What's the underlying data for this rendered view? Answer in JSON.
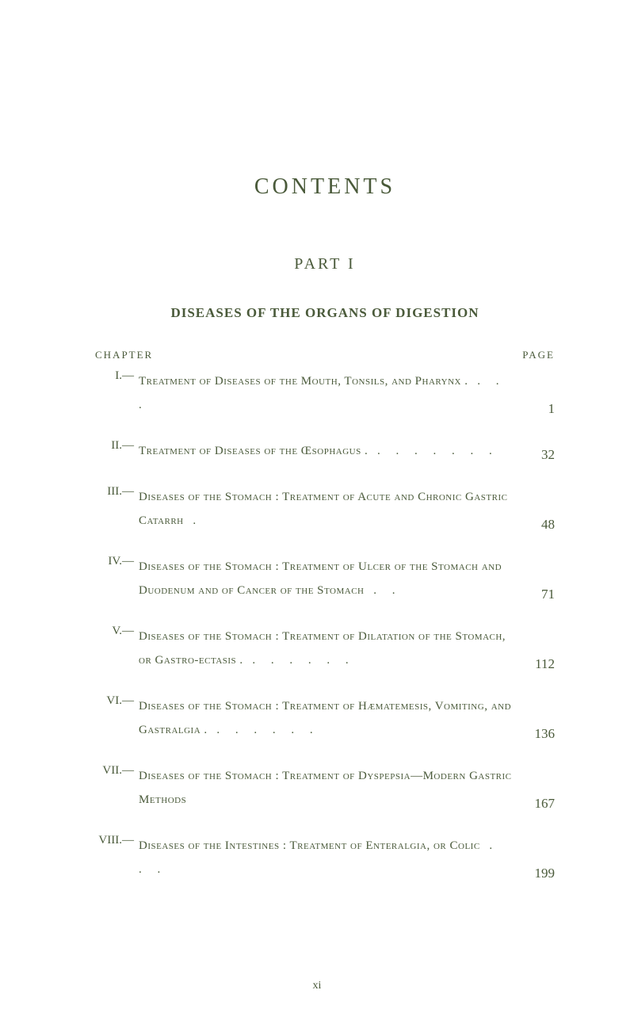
{
  "title": "CONTENTS",
  "part_title": "PART I",
  "section_title": "DISEASES OF THE ORGANS OF DIGESTION",
  "header": {
    "chapter_label": "CHAPTER",
    "page_label": "PAGE"
  },
  "entries": [
    {
      "roman": "I.—",
      "text": "Treatment of Diseases of the Mouth, Tonsils, and Pharynx .",
      "dots": "   .   .   .",
      "page": "1"
    },
    {
      "roman": "II.—",
      "text": "Treatment of Diseases of the Œsophagus .",
      "dots": "   .   .   .   .   .   .   .",
      "page": "32"
    },
    {
      "roman": "III.—",
      "text": "Diseases of the Stomach : Treatment of Acute and Chronic Gastric Catarrh",
      "dots": "   .",
      "page": "48"
    },
    {
      "roman": "IV.—",
      "text": "Diseases of the Stomach : Treatment of Ulcer of the Stomach and Duodenum and of Cancer of the Stomach",
      "dots": "   .   .",
      "page": "71"
    },
    {
      "roman": "V.—",
      "text": "Diseases of the Stomach : Treatment of Dilatation of the Stomach, or Gastro-ectasis .",
      "dots": "   .   .   .   .   .   .",
      "page": "112"
    },
    {
      "roman": "VI.—",
      "text": "Diseases of the Stomach : Treatment of Hæmatemesis, Vomiting, and Gastralgia .",
      "dots": "   .   .   .   .   .   .",
      "page": "136"
    },
    {
      "roman": "VII.—",
      "text": "Diseases of the Stomach : Treatment of Dyspepsia—Modern Gastric Methods",
      "dots": "",
      "page": "167"
    },
    {
      "roman": "VIII.—",
      "text": "Diseases of the Intestines : Treatment of Enteralgia, or Colic",
      "dots": "   .   .   .",
      "page": "199"
    }
  ],
  "footer": "xi",
  "colors": {
    "text": "#4a5a3a",
    "background": "#ffffff"
  }
}
